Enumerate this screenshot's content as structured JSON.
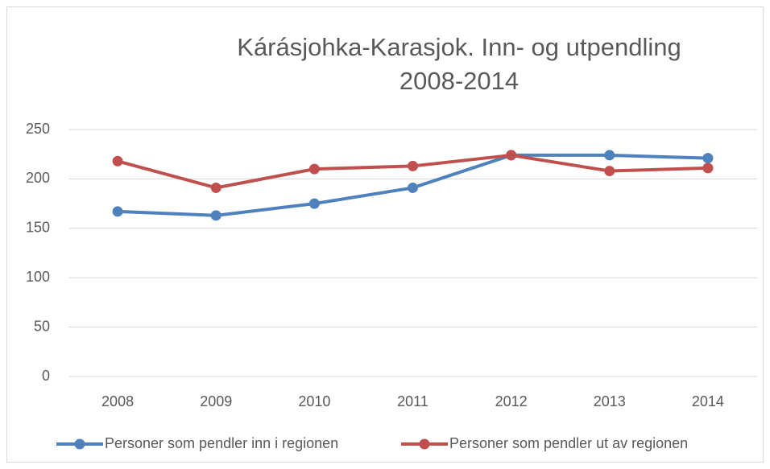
{
  "chart_data": {
    "type": "line",
    "title": "Kárásjohka-Karasjok. Inn- og utpendling 2008-2014",
    "categories": [
      "2008",
      "2009",
      "2010",
      "2011",
      "2012",
      "2013",
      "2014"
    ],
    "series": [
      {
        "name": "Personer som pendler inn i regionen",
        "color": "#4f81bd",
        "values": [
          167,
          163,
          175,
          191,
          224,
          224,
          221
        ]
      },
      {
        "name": "Personer som pendler ut av regionen",
        "color": "#c0504d",
        "values": [
          218,
          191,
          210,
          213,
          224,
          208,
          211
        ]
      }
    ],
    "ylim": [
      0,
      250
    ],
    "yticks": [
      0,
      50,
      100,
      150,
      200,
      250
    ],
    "grid": true,
    "legend": "bottom"
  }
}
